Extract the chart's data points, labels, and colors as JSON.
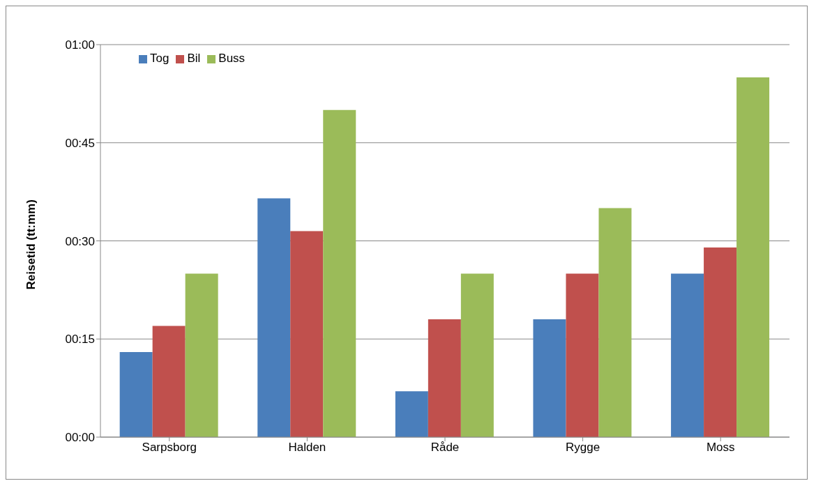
{
  "chart_data": {
    "type": "bar",
    "ylabel": "Reisetid (tt:mm)",
    "categories": [
      "Sarpsborg",
      "Halden",
      "Råde",
      "Rygge",
      "Moss"
    ],
    "series": [
      {
        "name": "Tog",
        "color": "#4a7ebb",
        "values": [
          13,
          36.5,
          7,
          18,
          25
        ]
      },
      {
        "name": "Bil",
        "color": "#c0504d",
        "values": [
          17,
          31.5,
          18,
          25,
          29
        ]
      },
      {
        "name": "Buss",
        "color": "#9bbb59",
        "values": [
          25,
          50,
          25,
          35,
          55
        ]
      }
    ],
    "ylim": [
      0,
      60
    ],
    "yticks": [
      {
        "value": 0,
        "label": "00:00"
      },
      {
        "value": 15,
        "label": "00:15"
      },
      {
        "value": 30,
        "label": "00:30"
      },
      {
        "value": 45,
        "label": "00:45"
      },
      {
        "value": 60,
        "label": "01:00"
      }
    ],
    "grid": "y",
    "legend": "top left"
  }
}
